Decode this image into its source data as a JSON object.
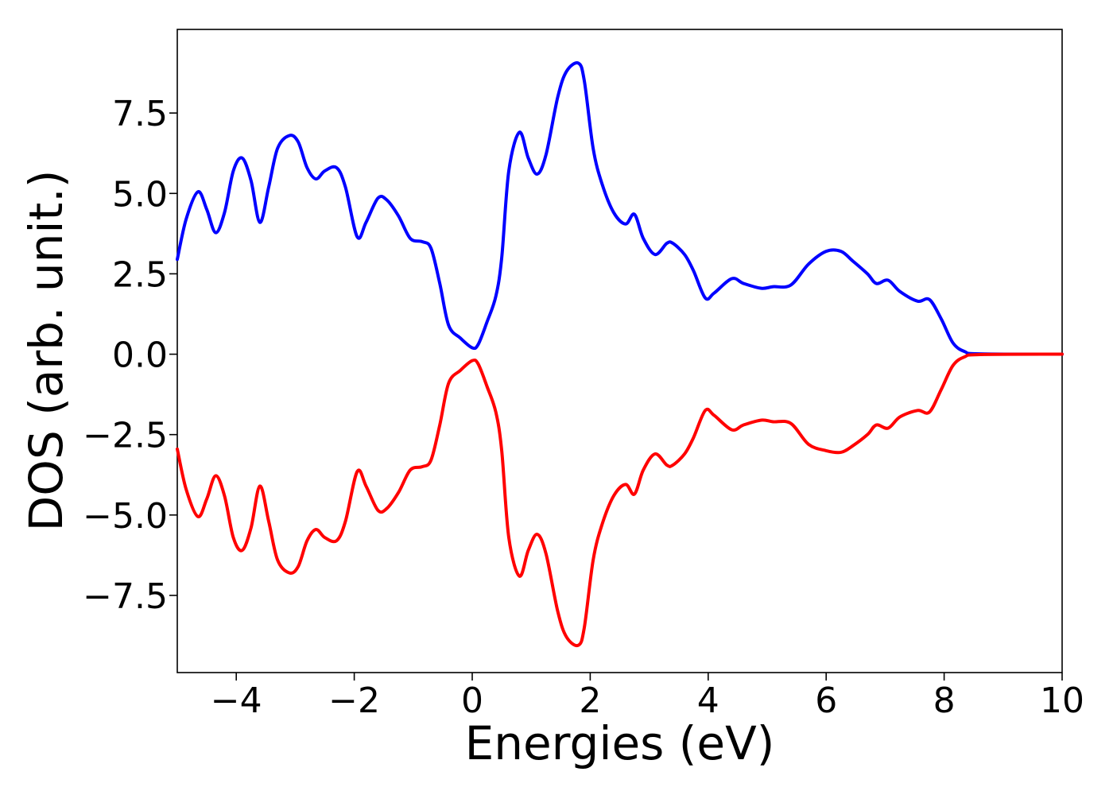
{
  "chart_data": {
    "type": "line",
    "title": "",
    "xlabel": "Energies (eV)",
    "ylabel": "DOS (arb. unit.)",
    "xlim": [
      -5,
      10
    ],
    "ylim": [
      -9.9,
      10.1
    ],
    "grid": false,
    "legend": "none",
    "x_ticks": [
      -4,
      -2,
      0,
      2,
      4,
      6,
      8,
      10
    ],
    "x_tick_labels": [
      "−4",
      "−2",
      "0",
      "2",
      "4",
      "6",
      "8",
      "10"
    ],
    "y_ticks": [
      7.5,
      5.0,
      2.5,
      0.0,
      -2.5,
      -5.0,
      -7.5
    ],
    "y_tick_labels": [
      "7.5",
      "5.0",
      "2.5",
      "0.0",
      "−2.5",
      "−5.0",
      "−7.5"
    ],
    "series": [
      {
        "color": "#0000ff",
        "points": [
          [
            -5.0,
            2.95
          ],
          [
            -4.85,
            4.2
          ],
          [
            -4.65,
            5.05
          ],
          [
            -4.5,
            4.5
          ],
          [
            -4.35,
            3.78
          ],
          [
            -4.2,
            4.4
          ],
          [
            -4.05,
            5.7
          ],
          [
            -3.9,
            6.1
          ],
          [
            -3.75,
            5.4
          ],
          [
            -3.6,
            4.1
          ],
          [
            -3.45,
            5.2
          ],
          [
            -3.3,
            6.4
          ],
          [
            -3.1,
            6.8
          ],
          [
            -2.95,
            6.6
          ],
          [
            -2.8,
            5.8
          ],
          [
            -2.65,
            5.45
          ],
          [
            -2.5,
            5.7
          ],
          [
            -2.3,
            5.8
          ],
          [
            -2.15,
            5.2
          ],
          [
            -1.95,
            3.65
          ],
          [
            -1.8,
            4.1
          ],
          [
            -1.6,
            4.85
          ],
          [
            -1.45,
            4.8
          ],
          [
            -1.25,
            4.3
          ],
          [
            -1.05,
            3.6
          ],
          [
            -0.85,
            3.5
          ],
          [
            -0.7,
            3.3
          ],
          [
            -0.55,
            2.2
          ],
          [
            -0.4,
            0.9
          ],
          [
            -0.2,
            0.5
          ],
          [
            0.0,
            0.2
          ],
          [
            0.1,
            0.3
          ],
          [
            0.25,
            1.0
          ],
          [
            0.4,
            1.8
          ],
          [
            0.5,
            3.0
          ],
          [
            0.62,
            5.7
          ],
          [
            0.8,
            6.9
          ],
          [
            0.95,
            6.1
          ],
          [
            1.1,
            5.6
          ],
          [
            1.25,
            6.2
          ],
          [
            1.45,
            8.0
          ],
          [
            1.6,
            8.8
          ],
          [
            1.8,
            9.05
          ],
          [
            1.9,
            8.5
          ],
          [
            2.05,
            6.4
          ],
          [
            2.2,
            5.3
          ],
          [
            2.4,
            4.4
          ],
          [
            2.6,
            4.05
          ],
          [
            2.75,
            4.35
          ],
          [
            2.9,
            3.6
          ],
          [
            3.1,
            3.1
          ],
          [
            3.3,
            3.45
          ],
          [
            3.4,
            3.45
          ],
          [
            3.6,
            3.1
          ],
          [
            3.75,
            2.6
          ],
          [
            3.95,
            1.75
          ],
          [
            4.1,
            1.9
          ],
          [
            4.4,
            2.35
          ],
          [
            4.6,
            2.2
          ],
          [
            4.9,
            2.05
          ],
          [
            5.1,
            2.1
          ],
          [
            5.4,
            2.15
          ],
          [
            5.7,
            2.8
          ],
          [
            6.0,
            3.2
          ],
          [
            6.25,
            3.2
          ],
          [
            6.45,
            2.9
          ],
          [
            6.7,
            2.5
          ],
          [
            6.85,
            2.2
          ],
          [
            7.05,
            2.3
          ],
          [
            7.25,
            1.95
          ],
          [
            7.55,
            1.65
          ],
          [
            7.75,
            1.7
          ],
          [
            7.95,
            1.1
          ],
          [
            8.15,
            0.35
          ],
          [
            8.35,
            0.08
          ],
          [
            8.6,
            0.01
          ],
          [
            10.0,
            0.0
          ]
        ]
      },
      {
        "color": "#ff0000",
        "points": [
          [
            -5.0,
            -2.95
          ],
          [
            -4.85,
            -4.2
          ],
          [
            -4.65,
            -5.05
          ],
          [
            -4.5,
            -4.5
          ],
          [
            -4.35,
            -3.78
          ],
          [
            -4.2,
            -4.4
          ],
          [
            -4.05,
            -5.7
          ],
          [
            -3.9,
            -6.1
          ],
          [
            -3.75,
            -5.4
          ],
          [
            -3.6,
            -4.1
          ],
          [
            -3.45,
            -5.2
          ],
          [
            -3.3,
            -6.4
          ],
          [
            -3.1,
            -6.8
          ],
          [
            -2.95,
            -6.6
          ],
          [
            -2.8,
            -5.8
          ],
          [
            -2.65,
            -5.45
          ],
          [
            -2.5,
            -5.7
          ],
          [
            -2.3,
            -5.8
          ],
          [
            -2.15,
            -5.2
          ],
          [
            -1.95,
            -3.65
          ],
          [
            -1.8,
            -4.1
          ],
          [
            -1.6,
            -4.85
          ],
          [
            -1.45,
            -4.8
          ],
          [
            -1.25,
            -4.3
          ],
          [
            -1.05,
            -3.6
          ],
          [
            -0.85,
            -3.5
          ],
          [
            -0.7,
            -3.3
          ],
          [
            -0.55,
            -2.2
          ],
          [
            -0.4,
            -0.9
          ],
          [
            -0.2,
            -0.5
          ],
          [
            0.0,
            -0.2
          ],
          [
            0.1,
            -0.3
          ],
          [
            0.25,
            -1.0
          ],
          [
            0.4,
            -1.8
          ],
          [
            0.5,
            -3.0
          ],
          [
            0.62,
            -5.7
          ],
          [
            0.8,
            -6.9
          ],
          [
            0.95,
            -6.1
          ],
          [
            1.1,
            -5.6
          ],
          [
            1.25,
            -6.2
          ],
          [
            1.45,
            -8.0
          ],
          [
            1.6,
            -8.8
          ],
          [
            1.8,
            -9.05
          ],
          [
            1.9,
            -8.5
          ],
          [
            2.05,
            -6.4
          ],
          [
            2.2,
            -5.3
          ],
          [
            2.4,
            -4.4
          ],
          [
            2.6,
            -4.05
          ],
          [
            2.75,
            -4.35
          ],
          [
            2.9,
            -3.6
          ],
          [
            3.1,
            -3.1
          ],
          [
            3.3,
            -3.45
          ],
          [
            3.4,
            -3.45
          ],
          [
            3.6,
            -3.1
          ],
          [
            3.75,
            -2.6
          ],
          [
            3.95,
            -1.75
          ],
          [
            4.1,
            -1.9
          ],
          [
            4.4,
            -2.35
          ],
          [
            4.6,
            -2.2
          ],
          [
            4.9,
            -2.05
          ],
          [
            5.1,
            -2.1
          ],
          [
            5.4,
            -2.15
          ],
          [
            5.7,
            -2.8
          ],
          [
            6.0,
            -3.0
          ],
          [
            6.25,
            -3.05
          ],
          [
            6.45,
            -2.85
          ],
          [
            6.7,
            -2.5
          ],
          [
            6.85,
            -2.2
          ],
          [
            7.05,
            -2.3
          ],
          [
            7.25,
            -1.95
          ],
          [
            7.55,
            -1.75
          ],
          [
            7.75,
            -1.8
          ],
          [
            7.95,
            -1.1
          ],
          [
            8.15,
            -0.35
          ],
          [
            8.35,
            -0.08
          ],
          [
            8.6,
            -0.01
          ],
          [
            10.0,
            0.0
          ]
        ]
      }
    ]
  }
}
